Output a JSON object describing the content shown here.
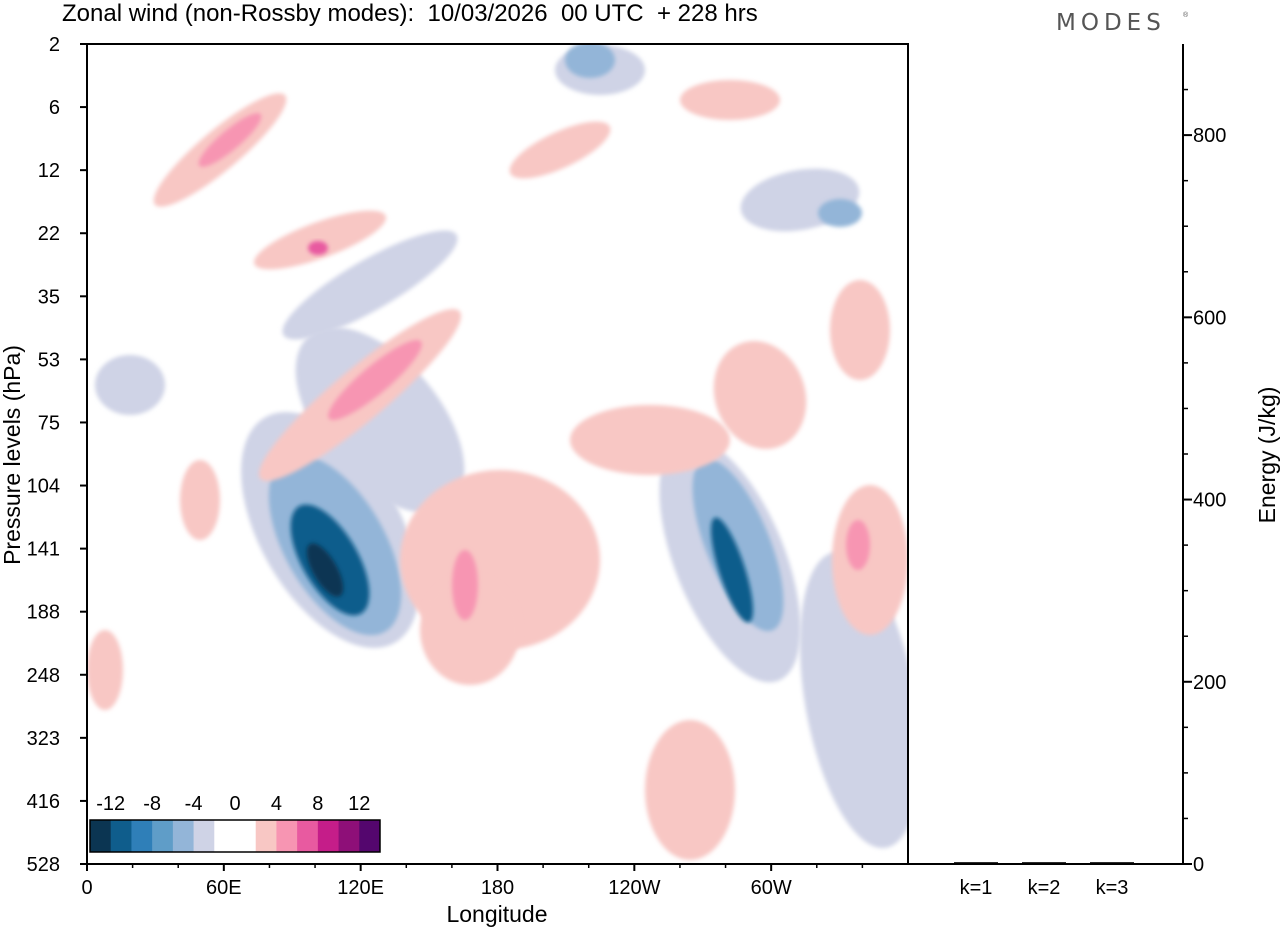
{
  "header": {
    "title": "Zonal wind (non-Rossby modes):  10/03/2026  00 UTC  + 228 hrs",
    "brand": "MODES",
    "brand_mark": "®"
  },
  "chart_data": [
    {
      "type": "heatmap",
      "title": "Zonal wind (non-Rossby modes):  10/03/2026  00 UTC  + 228 hrs",
      "xlabel": "Longitude",
      "ylabel": "Pressure levels (hPa)",
      "x_ticks": [
        "0",
        "60E",
        "120E",
        "180",
        "120W",
        "60W"
      ],
      "x_tick_degrees": [
        0,
        60,
        120,
        180,
        240,
        300
      ],
      "xlim": [
        0,
        360
      ],
      "y_ticks": [
        "2",
        "6",
        "12",
        "22",
        "35",
        "53",
        "75",
        "104",
        "141",
        "188",
        "248",
        "323",
        "416",
        "528"
      ],
      "colorbar": {
        "labels": [
          "-12",
          "-8",
          "-4",
          "0",
          "4",
          "8",
          "12"
        ],
        "levels": [
          -14,
          -12,
          -10,
          -8,
          -6,
          -4,
          -2,
          2,
          4,
          6,
          8,
          10,
          12,
          14
        ],
        "colors": [
          "#0b3552",
          "#0f5d8c",
          "#2f7fb8",
          "#5f9dc8",
          "#93b5d8",
          "#cfd3e6",
          "#ffffff",
          "#ffffff",
          "#f8c7c4",
          "#f795b2",
          "#e85aa0",
          "#c51d89",
          "#8e0f78",
          "#54066e"
        ]
      },
      "features": [
        {
          "name": "negative-jet-main",
          "lon": 110,
          "level": "141",
          "min_value": -14
        },
        {
          "name": "negative-jet-secondary",
          "lon": 283,
          "level": "141",
          "min_value": -10
        },
        {
          "name": "positive-band-stratosphere",
          "lon": 115,
          "level": "53",
          "max_value": 8
        },
        {
          "name": "positive-region-central",
          "lon": 165,
          "level": "141",
          "max_value": 6
        },
        {
          "name": "positive-band-east",
          "lon": 330,
          "level": "141",
          "max_value": 8
        }
      ]
    },
    {
      "type": "bar",
      "title": "",
      "xlabel": "",
      "ylabel": "Energy (J/kg)",
      "categories": [
        "k=1",
        "k=2",
        "k=3"
      ],
      "values": [
        2,
        2,
        2
      ],
      "ylim": [
        0,
        900
      ],
      "y_ticks": [
        "0",
        "200",
        "400",
        "600",
        "800"
      ],
      "y_tick_values": [
        0,
        200,
        400,
        600,
        800
      ]
    }
  ],
  "colors": {
    "neg_light": "#cfd3e6",
    "neg_mid": "#93b5d8",
    "neg_dark": "#0f5d8c",
    "pos_light": "#f8c7c4",
    "pos_mid": "#f795b2",
    "pos_dark": "#e85aa0"
  }
}
